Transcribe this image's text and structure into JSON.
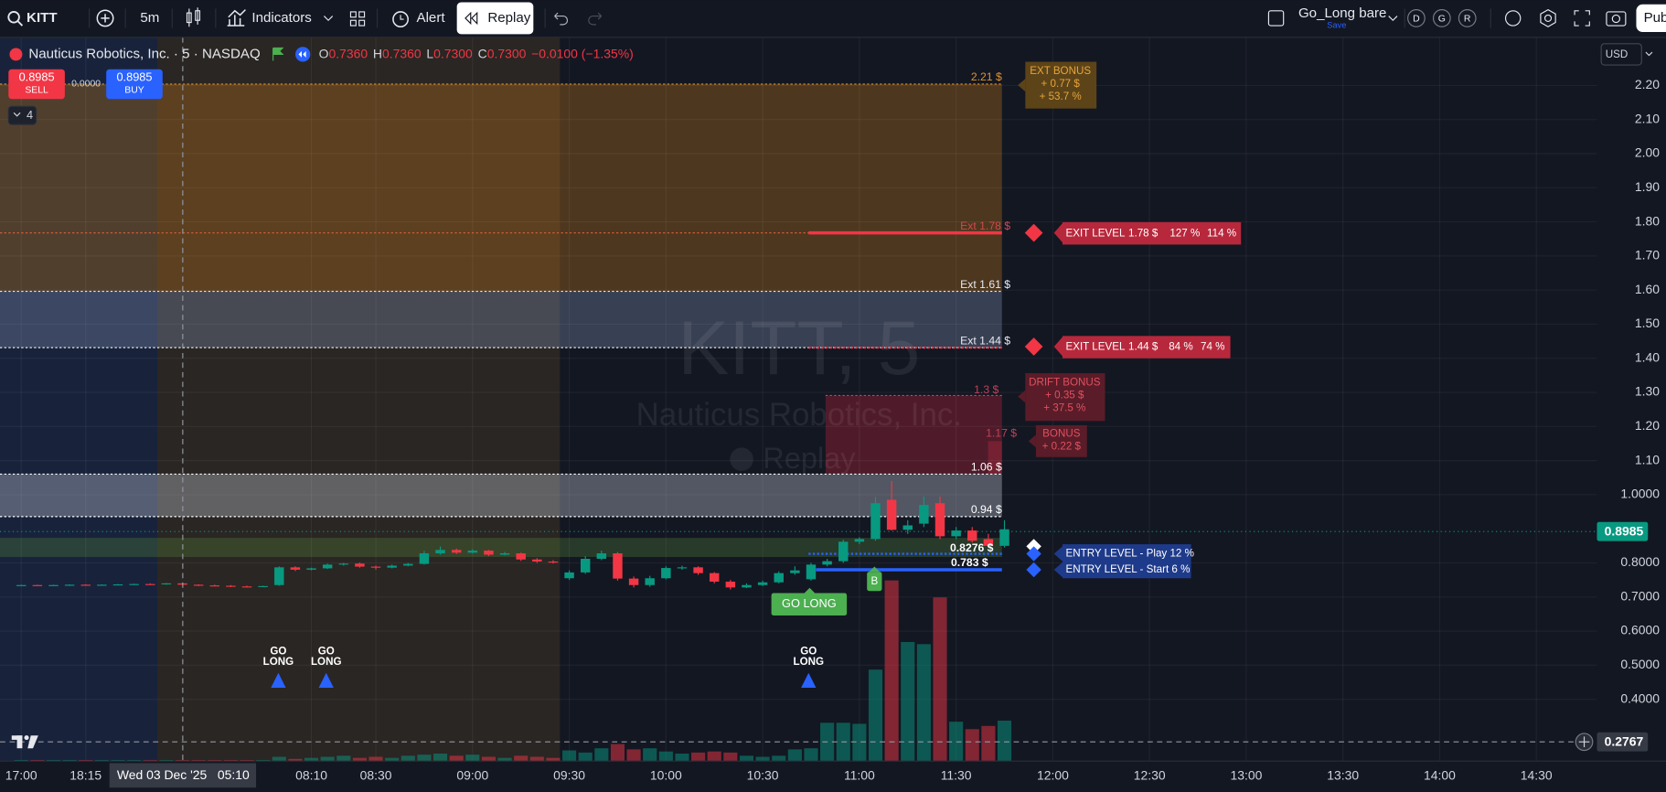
{
  "toolbar": {
    "symbol": "KITT",
    "interval": "5m",
    "indicators": "Indicators",
    "alert": "Alert",
    "replay": "Replay",
    "layout_name": "Go_Long bare",
    "save": "Save",
    "profiles": [
      "D",
      "G",
      "R"
    ],
    "publish": "Pub"
  },
  "legend": {
    "instrument": "Nauticus Robotics, Inc. · 5 · NASDAQ",
    "ohlc": [
      {
        "key": "O",
        "value": "0.7360"
      },
      {
        "key": "H",
        "value": "0.7360"
      },
      {
        "key": "L",
        "value": "0.7300"
      },
      {
        "key": "C",
        "value": "0.7300"
      }
    ],
    "change": "−0.0100 (−1.35%)",
    "sell_price": "0.8985",
    "sell": "SELL",
    "spread": "0.0000",
    "buy_price": "0.8985",
    "buy": "BUY",
    "indicators_count": "4"
  },
  "currency": "USD",
  "watermark": [
    "KITT, 5",
    "Nauticus Robotics, Inc.",
    "Replay"
  ],
  "price_scale": {
    "last_price": "0.8985",
    "crosshair_price": "0.2767"
  },
  "time_scale": {
    "crosshair_time": "Wed 03 Dec '25   05:10"
  },
  "levels": [
    "2.21 $",
    "Ext 1.78 $",
    "Ext 1.61 $",
    "Ext 1.44 $",
    "1.3 $",
    "1.17 $",
    "1.06 $",
    "0.94 $",
    "0.8276 $",
    "0.783 $"
  ],
  "ext_bonus": [
    "EXT BONUS",
    "+ 0.77 $",
    "+ 53.7 %"
  ],
  "exit_levels": [
    [
      "EXIT LEVEL",
      "1.78 $",
      "127 %",
      "114 %"
    ],
    [
      "EXIT LEVEL",
      "1.44 $",
      "84 %",
      "74 %"
    ]
  ],
  "drift_bonus": [
    "DRIFT BONUS",
    "+ 0.35 $",
    "+ 37.5 %"
  ],
  "bonus": [
    "BONUS",
    "+ 0.22 $"
  ],
  "entry_levels": [
    "ENTRY LEVEL - Play 12 %",
    "ENTRY LEVEL - Start 6 %"
  ],
  "signals": [
    [
      "GO",
      "LONG"
    ],
    [
      "GO",
      "LONG"
    ],
    [
      "GO",
      "LONG"
    ]
  ],
  "go_long": "GO LONG",
  "buy_marker": "B",
  "chart_data": {
    "type": "candlestick",
    "categories": [
      "17:00",
      null,
      null,
      null,
      "18:15",
      null,
      null,
      null,
      null,
      null,
      null,
      null,
      null,
      null,
      null,
      null,
      null,
      null,
      "08:10",
      null,
      null,
      null,
      "08:30",
      null,
      null,
      null,
      null,
      null,
      "09:00",
      null,
      null,
      null,
      null,
      null,
      "09:30",
      null,
      null,
      null,
      null,
      null,
      "10:00",
      null,
      null,
      null,
      null,
      null,
      "10:30",
      null,
      null,
      null,
      null,
      null,
      "11:00",
      null,
      null,
      null,
      null,
      null,
      "11:30",
      null,
      null,
      null,
      null,
      null,
      "12:00",
      null,
      null,
      null,
      null,
      null,
      "12:30",
      null,
      null,
      null,
      null,
      null,
      "13:00",
      null,
      null,
      null,
      null,
      null,
      "13:30",
      null,
      null,
      null,
      null,
      null,
      "14:00",
      null,
      null,
      null,
      null,
      null,
      "14:30",
      null,
      null,
      null
    ],
    "open": [
      0.735,
      0.735,
      0.734,
      0.735,
      0.736,
      0.735,
      0.736,
      0.737,
      0.738,
      0.737,
      0.74,
      0.736,
      0.734,
      0.733,
      0.731,
      0.73,
      0.735,
      0.787,
      0.78,
      0.784,
      0.795,
      0.798,
      0.789,
      0.786,
      0.792,
      0.797,
      0.828,
      0.838,
      0.83,
      0.836,
      0.824,
      0.828,
      0.81,
      0.804,
      0.755,
      0.772,
      0.812,
      0.828,
      0.754,
      0.735,
      0.755,
      0.785,
      0.787,
      0.77,
      0.745,
      0.728,
      0.735,
      0.743,
      0.77,
      0.752,
      0.795,
      0.805,
      0.862,
      0.87,
      0.985,
      0.897,
      0.915,
      0.975,
      0.878,
      0.895,
      0.87,
      0.85,
      null,
      null,
      null,
      null,
      null,
      null,
      null,
      null,
      null,
      null,
      null,
      null,
      null,
      null,
      null,
      null,
      null,
      null,
      null,
      null,
      null,
      null,
      null,
      null,
      null,
      null,
      null,
      null,
      null,
      null,
      null,
      null,
      null,
      null,
      null,
      null
    ],
    "high": [
      0.736,
      0.736,
      0.736,
      0.737,
      0.737,
      0.737,
      0.738,
      0.739,
      0.74,
      0.741,
      0.742,
      0.737,
      0.736,
      0.735,
      0.733,
      0.733,
      0.79,
      0.79,
      0.786,
      0.798,
      0.8,
      0.801,
      0.792,
      0.795,
      0.8,
      0.835,
      0.848,
      0.842,
      0.84,
      0.838,
      0.832,
      0.83,
      0.814,
      0.808,
      0.778,
      0.82,
      0.836,
      0.832,
      0.76,
      0.762,
      0.79,
      0.792,
      0.79,
      0.773,
      0.75,
      0.74,
      0.748,
      0.775,
      0.79,
      0.8,
      0.812,
      0.868,
      0.875,
      0.993,
      1.04,
      0.925,
      0.995,
      0.995,
      0.905,
      0.905,
      0.885,
      0.925,
      null,
      null,
      null,
      null,
      null,
      null,
      null,
      null,
      null,
      null,
      null,
      null,
      null,
      null,
      null,
      null,
      null,
      null,
      null,
      null,
      null,
      null,
      null,
      null,
      null,
      null,
      null,
      null,
      null,
      null,
      null,
      null,
      null,
      null,
      null,
      null
    ],
    "low": [
      0.734,
      0.733,
      0.733,
      0.734,
      0.734,
      0.734,
      0.735,
      0.736,
      0.736,
      0.736,
      0.734,
      0.732,
      0.731,
      0.729,
      0.728,
      0.729,
      0.733,
      0.776,
      0.778,
      0.782,
      0.792,
      0.786,
      0.78,
      0.784,
      0.79,
      0.795,
      0.824,
      0.826,
      0.828,
      0.82,
      0.822,
      0.806,
      0.8,
      0.798,
      0.75,
      0.768,
      0.808,
      0.748,
      0.728,
      0.73,
      0.752,
      0.78,
      0.765,
      0.74,
      0.722,
      0.726,
      0.732,
      0.74,
      0.765,
      0.748,
      0.79,
      0.8,
      0.855,
      0.865,
      0.895,
      0.885,
      0.905,
      0.87,
      0.87,
      0.86,
      0.845,
      0.845,
      null,
      null,
      null,
      null,
      null,
      null,
      null,
      null,
      null,
      null,
      null,
      null,
      null,
      null,
      null,
      null,
      null,
      null,
      null,
      null,
      null,
      null,
      null,
      null,
      null,
      null,
      null,
      null,
      null,
      null,
      null,
      null,
      null,
      null,
      null,
      null
    ],
    "close": [
      0.735,
      0.734,
      0.735,
      0.736,
      0.735,
      0.736,
      0.737,
      0.738,
      0.737,
      0.74,
      0.736,
      0.734,
      0.733,
      0.731,
      0.73,
      0.732,
      0.787,
      0.78,
      0.784,
      0.795,
      0.798,
      0.789,
      0.786,
      0.792,
      0.797,
      0.828,
      0.838,
      0.83,
      0.836,
      0.824,
      0.828,
      0.81,
      0.804,
      0.802,
      0.772,
      0.812,
      0.828,
      0.754,
      0.735,
      0.755,
      0.785,
      0.787,
      0.77,
      0.745,
      0.728,
      0.735,
      0.743,
      0.77,
      0.778,
      0.795,
      0.805,
      0.862,
      0.87,
      0.975,
      0.897,
      0.91,
      0.97,
      0.878,
      0.895,
      0.865,
      0.85,
      0.8985,
      null,
      null,
      null,
      null,
      null,
      null,
      null,
      null,
      null,
      null,
      null,
      null,
      null,
      null,
      null,
      null,
      null,
      null,
      null,
      null,
      null,
      null,
      null,
      null,
      null,
      null,
      null,
      null,
      null,
      null,
      null,
      null,
      null,
      null,
      null,
      null
    ],
    "volume": [
      1,
      1,
      1,
      1,
      1,
      1,
      1,
      1,
      1,
      1,
      1,
      1,
      1,
      1,
      1,
      1,
      4,
      2,
      3,
      4,
      5,
      3,
      4,
      3,
      5,
      6,
      7,
      5,
      6,
      4,
      3,
      5,
      4,
      3,
      10,
      8,
      12,
      16,
      11,
      12,
      9,
      7,
      8,
      9,
      8,
      5,
      4,
      5,
      11,
      12,
      36,
      36,
      35,
      86,
      170,
      112,
      110,
      154,
      37,
      30,
      33,
      38,
      null,
      null,
      null,
      null,
      null,
      null,
      null,
      null,
      null,
      null,
      null,
      null,
      null,
      null,
      null,
      null,
      null,
      null,
      null,
      null,
      null,
      null,
      null,
      null,
      null,
      null,
      null,
      null,
      null,
      null,
      null,
      null,
      null,
      null,
      null,
      null
    ],
    "up_color": "#089981",
    "down_color": "#f23645",
    "ylim": [
      0.219,
      2.341
    ],
    "yticks": [
      {
        "value": 2.2,
        "label": "2.20"
      },
      {
        "value": 2.1,
        "label": "2.10"
      },
      {
        "value": 2.0,
        "label": "2.00"
      },
      {
        "value": 1.9,
        "label": "1.90"
      },
      {
        "value": 1.8,
        "label": "1.80"
      },
      {
        "value": 1.7,
        "label": "1.70"
      },
      {
        "value": 1.6,
        "label": "1.60"
      },
      {
        "value": 1.5,
        "label": "1.50"
      },
      {
        "value": 1.4,
        "label": "1.40"
      },
      {
        "value": 1.3,
        "label": "1.30"
      },
      {
        "value": 1.2,
        "label": "1.20"
      },
      {
        "value": 1.1,
        "label": "1.10"
      },
      {
        "value": 1.0,
        "label": "1.0000"
      },
      {
        "value": 0.8,
        "label": "0.8000"
      },
      {
        "value": 0.7,
        "label": "0.7000"
      },
      {
        "value": 0.6,
        "label": "0.6000"
      },
      {
        "value": 0.5,
        "label": "0.5000"
      },
      {
        "value": 0.4,
        "label": "0.4000"
      }
    ],
    "grid": true
  }
}
